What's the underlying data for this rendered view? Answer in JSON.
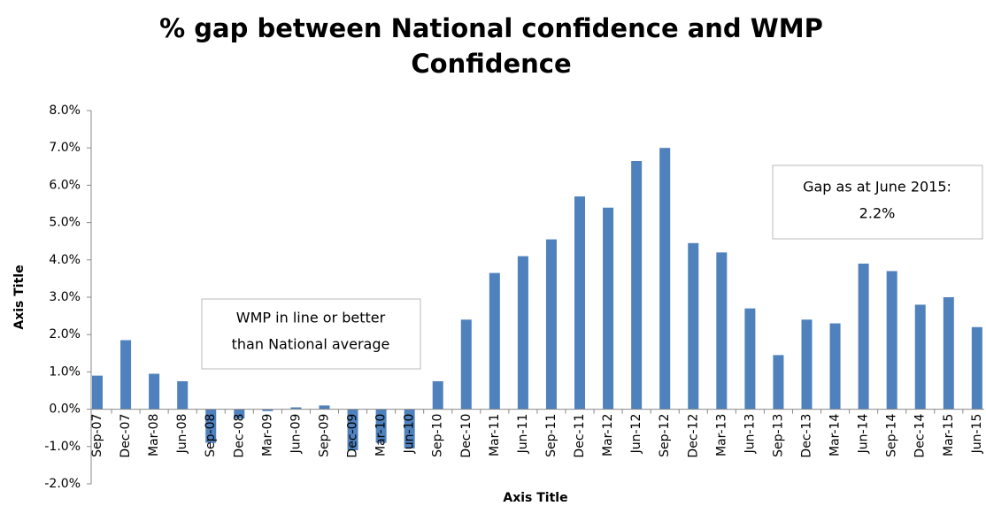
{
  "chart_data": {
    "type": "bar",
    "title": [
      "% gap between National confidence and WMP",
      "Confidence"
    ],
    "x_label": "Axis Title",
    "y_label": "Axis Title",
    "categories": [
      "Sep-07",
      "Dec-07",
      "Mar-08",
      "Jun-08",
      "Sep-08",
      "Dec-08",
      "Mar-09",
      "Jun-09",
      "Sep-09",
      "Dec-09",
      "Mar-10",
      "Jun-10",
      "Sep-10",
      "Dec-10",
      "Mar-11",
      "Jun-11",
      "Sep-11",
      "Dec-11",
      "Mar-12",
      "Jun-12",
      "Sep-12",
      "Dec-12",
      "Mar-13",
      "Jun-13",
      "Sep-13",
      "Dec-13",
      "Mar-14",
      "Jun-14",
      "Sep-14",
      "Dec-14",
      "Mar-15",
      "Jun-15"
    ],
    "values": [
      0.9,
      1.85,
      0.95,
      0.75,
      -0.9,
      -0.25,
      -0.05,
      0.05,
      0.1,
      -1.1,
      -0.9,
      -1.05,
      0.75,
      2.4,
      3.65,
      4.1,
      4.55,
      5.7,
      5.4,
      6.65,
      7.0,
      4.45,
      4.2,
      2.7,
      1.45,
      2.4,
      2.3,
      3.9,
      3.7,
      2.8,
      3.0,
      2.2
    ],
    "color": "#4f81bd",
    "ylim": [
      -2,
      8
    ],
    "yticks": [
      {
        "value": -2,
        "label": "-2.0%"
      },
      {
        "value": -1,
        "label": "-1.0%"
      },
      {
        "value": 0,
        "label": "0.0%"
      },
      {
        "value": 1,
        "label": "1.0%"
      },
      {
        "value": 2,
        "label": "2.0%"
      },
      {
        "value": 3,
        "label": "3.0%"
      },
      {
        "value": 4,
        "label": "4.0%"
      },
      {
        "value": 5,
        "label": "5.0%"
      },
      {
        "value": 6,
        "label": "6.0%"
      },
      {
        "value": 7,
        "label": "7.0%"
      },
      {
        "value": 8,
        "label": "8.0%"
      }
    ],
    "grid": false,
    "annotations": [
      {
        "lines": [
          "WMP in line or better",
          "than National average"
        ]
      },
      {
        "lines": [
          "Gap as at June 2015:",
          "2.2%"
        ]
      }
    ]
  }
}
